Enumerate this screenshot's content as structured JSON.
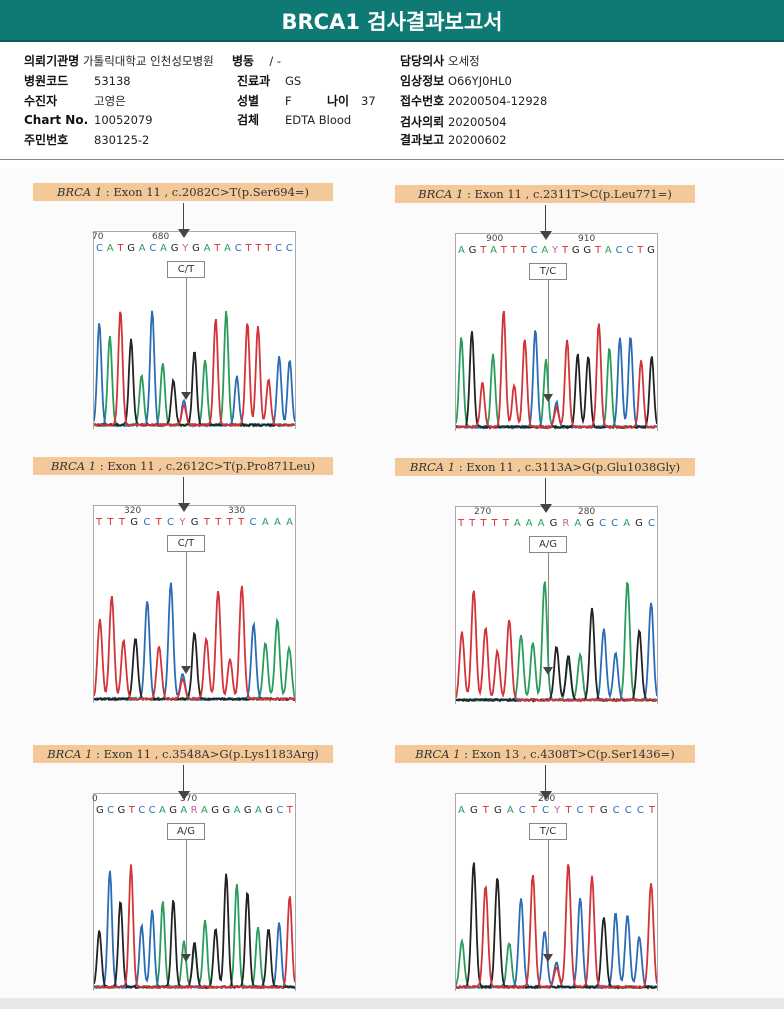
{
  "title": "BRCA1 검사결과보고서",
  "info": {
    "institution": {
      "label": "의뢰기관명",
      "value": "가톨릭대학교 인천성모병원"
    },
    "ward": {
      "label": "병동",
      "value": "/ -"
    },
    "doctor": {
      "label": "담당의사",
      "value": "오세정"
    },
    "hospital_code": {
      "label": "병원코드",
      "value": "53138"
    },
    "dept": {
      "label": "진료과",
      "value": "GS"
    },
    "clinical": {
      "label": "임상정보",
      "value": "O66YJ0HL0"
    },
    "patient": {
      "label": "수진자",
      "value": "고영은"
    },
    "sex": {
      "label": "성별",
      "value": "F"
    },
    "age": {
      "label": "나이",
      "value": "37"
    },
    "receipt": {
      "label": "접수번호",
      "value": "20200504-12928"
    },
    "chart": {
      "label": "Chart No.",
      "value": "10052079"
    },
    "specimen": {
      "label": "검체",
      "value": "EDTA Blood"
    },
    "request": {
      "label": "검사의뢰",
      "value": "20200504"
    },
    "id": {
      "label": "주민번호",
      "value": "830125-2"
    },
    "report": {
      "label": "결과보고",
      "value": "20200602"
    }
  },
  "colors": {
    "A": "#2a9d5c",
    "C": "#2a6db5",
    "G": "#222222",
    "T": "#d2343a",
    "Y": "#c05fa0",
    "R": "#c05fa0"
  },
  "panels": [
    {
      "gene": "BRCA 1",
      "desc": " : Exon 11 , c.2082C>T(p.Ser694=)",
      "call": "C/T",
      "ticks": [
        "70",
        "680"
      ],
      "seq": "CATGACAGYGATACTTTCC"
    },
    {
      "gene": "BRCA 1",
      "desc": " : Exon 11 , c.2311T>C(p.Leu771=)",
      "call": "T/C",
      "ticks": [
        "900",
        "910"
      ],
      "seq": "AGTATTTCAYTGGTACCTG"
    },
    {
      "gene": "BRCA 1",
      "desc": " : Exon 11 , c.2612C>T(p.Pro871Leu)",
      "call": "C/T",
      "ticks": [
        "320",
        "330"
      ],
      "seq": "TTTGCTCYGTTTTCAAA"
    },
    {
      "gene": "BRCA 1",
      "desc": " : Exon 11 , c.3113A>G(p.Glu1038Gly)",
      "call": "A/G",
      "ticks": [
        "270",
        "280"
      ],
      "seq": "TTTTTAAAGRAGCCAGC"
    },
    {
      "gene": "BRCA 1",
      "desc": " : Exon 11 , c.3548A>G(p.Lys1183Arg)",
      "call": "A/G",
      "ticks": [
        "0",
        "370"
      ],
      "seq": "GCGTCCAGARAGGAGAGCT"
    },
    {
      "gene": "BRCA 1",
      "desc": " : Exon 13 , c.4308T>C(p.Ser1436=)",
      "call": "T/C",
      "ticks": [
        "200"
      ],
      "seq": "AGTGACTCYTCTGCCCT"
    }
  ]
}
